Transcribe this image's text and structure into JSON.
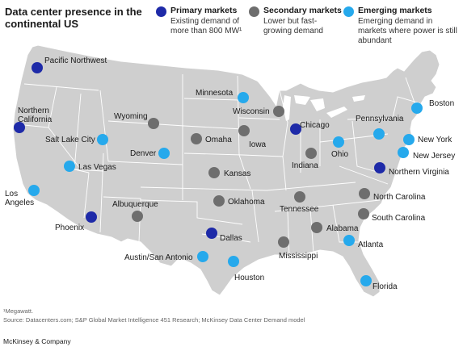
{
  "title": "Data center presence in the continental US",
  "legend": [
    {
      "key": "primary",
      "title": "Primary markets",
      "desc": "Existing demand of more than 800 MW¹",
      "color": "#1e2aa8"
    },
    {
      "key": "secondary",
      "title": "Secondary markets",
      "desc": "Lower but fast-growing demand",
      "color": "#6e6e6e"
    },
    {
      "key": "emerging",
      "title": "Emerging markets",
      "desc": "Emerging demand in markets where power is still abundant",
      "color": "#26a9ec"
    }
  ],
  "markets": [
    {
      "name": "Pacific Northwest",
      "type": "primary"
    },
    {
      "name": "Northern California",
      "type": "primary"
    },
    {
      "name": "Salt Lake City",
      "type": "emerging"
    },
    {
      "name": "Las Vegas",
      "type": "emerging"
    },
    {
      "name": "Los Angeles",
      "type": "emerging"
    },
    {
      "name": "Phoenix",
      "type": "primary"
    },
    {
      "name": "Albuquerque",
      "type": "secondary"
    },
    {
      "name": "Wyoming",
      "type": "secondary"
    },
    {
      "name": "Denver",
      "type": "emerging"
    },
    {
      "name": "Omaha",
      "type": "secondary"
    },
    {
      "name": "Kansas",
      "type": "secondary"
    },
    {
      "name": "Oklahoma",
      "type": "secondary"
    },
    {
      "name": "Dallas",
      "type": "primary"
    },
    {
      "name": "Austin/San Antonio",
      "type": "emerging"
    },
    {
      "name": "Houston",
      "type": "emerging"
    },
    {
      "name": "Minnesota",
      "type": "emerging"
    },
    {
      "name": "Wisconsin",
      "type": "secondary"
    },
    {
      "name": "Iowa",
      "type": "secondary"
    },
    {
      "name": "Chicago",
      "type": "primary"
    },
    {
      "name": "Indiana",
      "type": "secondary"
    },
    {
      "name": "Ohio",
      "type": "emerging"
    },
    {
      "name": "Pennsylvania",
      "type": "emerging"
    },
    {
      "name": "Boston",
      "type": "emerging"
    },
    {
      "name": "New York",
      "type": "emerging"
    },
    {
      "name": "New Jersey",
      "type": "emerging"
    },
    {
      "name": "Northern Virginia",
      "type": "primary"
    },
    {
      "name": "North Carolina",
      "type": "secondary"
    },
    {
      "name": "Tennessee",
      "type": "secondary"
    },
    {
      "name": "South Carolina",
      "type": "secondary"
    },
    {
      "name": "Alabama",
      "type": "secondary"
    },
    {
      "name": "Atlanta",
      "type": "emerging"
    },
    {
      "name": "Mississippi",
      "type": "secondary"
    },
    {
      "name": "Florida",
      "type": "emerging"
    }
  ],
  "footnotes": {
    "megawatt": "¹Megawatt.",
    "source": "Source: Datacenters.com; S&P Global Market Intelligence 451 Research; McKinsey Data Center Demand model"
  },
  "brand": "McKinsey & Company"
}
